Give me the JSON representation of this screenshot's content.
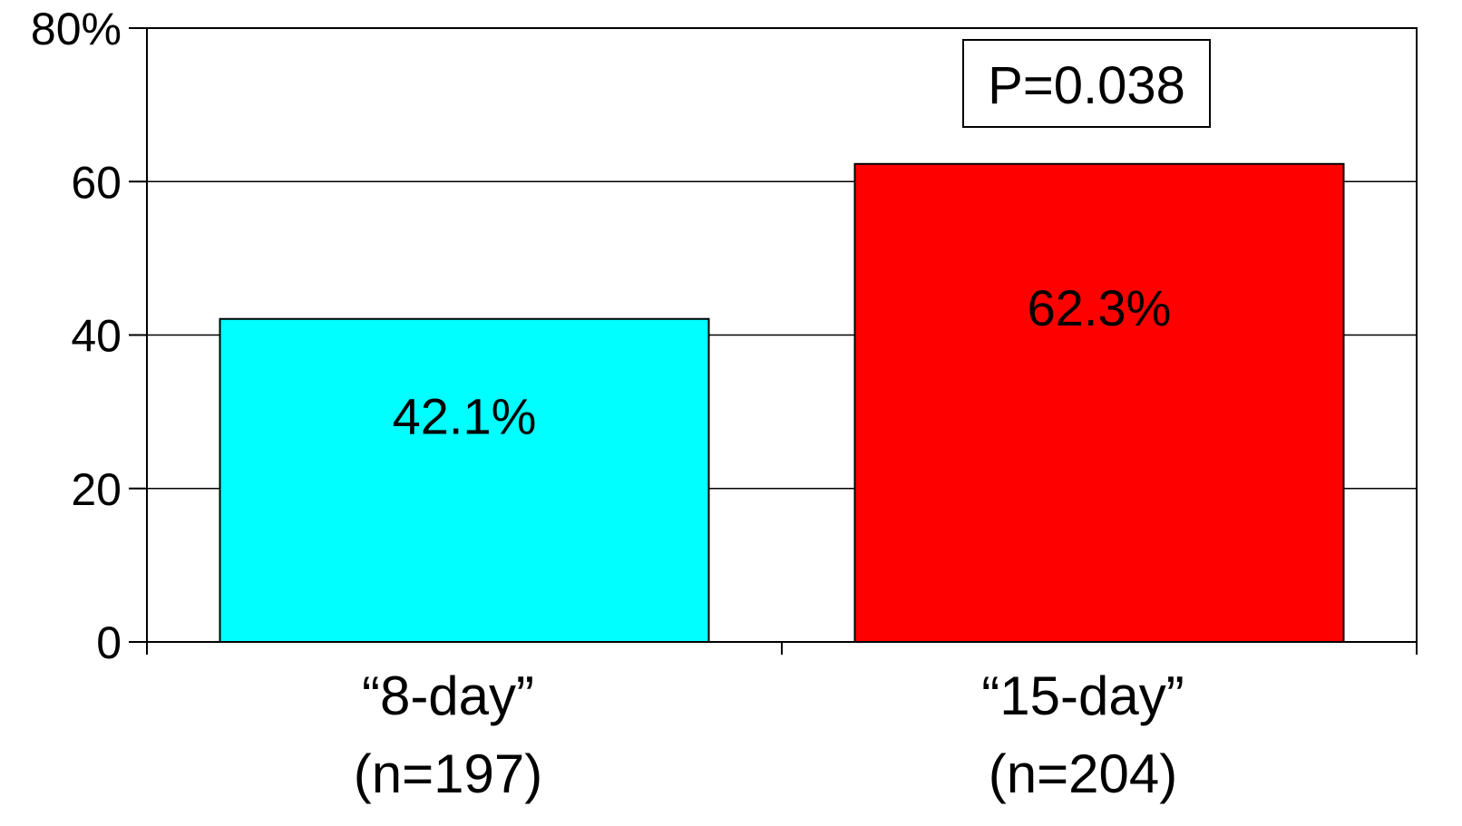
{
  "chart_data": {
    "type": "bar",
    "categories": [
      [
        "“8-day”",
        "(n=197)"
      ],
      [
        "“15-day”",
        "(n=204)"
      ]
    ],
    "values": [
      42.1,
      62.3
    ],
    "value_labels": [
      "42.1%",
      "62.3%"
    ],
    "colors": [
      "#00FFFF",
      "#FF0000"
    ],
    "ylim": [
      0,
      80
    ],
    "yticks": [
      0,
      20,
      40,
      60,
      80
    ],
    "ytick_labels": [
      "0",
      "20",
      "40",
      "60",
      "80%"
    ],
    "grid": true,
    "annotation": "P=0.038"
  }
}
